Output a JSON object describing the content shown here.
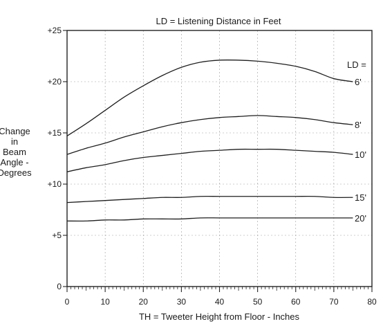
{
  "chart_data": {
    "type": "line",
    "title": "LD = Listening Distance in Feet",
    "xlabel": "TH = Tweeter Height from Floor - Inches",
    "ylabel_lines": [
      "Change",
      "in",
      "Beam",
      "Angle -",
      "Degrees"
    ],
    "xlim": [
      0,
      80
    ],
    "ylim": [
      0,
      25
    ],
    "x_ticks": [
      0,
      10,
      20,
      30,
      40,
      50,
      60,
      70,
      80
    ],
    "x_tick_labels": [
      "0",
      "10",
      "20",
      "30",
      "40",
      "50",
      "60",
      "70",
      "80"
    ],
    "y_ticks": [
      0,
      5,
      10,
      15,
      20,
      25
    ],
    "y_tick_labels": [
      "0",
      "+5",
      "+10",
      "+15",
      "+20",
      "+25"
    ],
    "grid": true,
    "legend_title": "LD =",
    "x": [
      0,
      5,
      10,
      15,
      20,
      25,
      30,
      35,
      40,
      45,
      50,
      55,
      60,
      65,
      70,
      75
    ],
    "series": [
      {
        "name": "6'",
        "values": [
          14.7,
          15.9,
          17.2,
          18.5,
          19.6,
          20.6,
          21.4,
          21.9,
          22.1,
          22.1,
          22.0,
          21.8,
          21.5,
          21.0,
          20.3,
          20.0
        ]
      },
      {
        "name": "8'",
        "values": [
          12.9,
          13.5,
          14.0,
          14.6,
          15.1,
          15.6,
          16.0,
          16.3,
          16.5,
          16.6,
          16.7,
          16.6,
          16.5,
          16.3,
          16.0,
          15.8
        ]
      },
      {
        "name": "10'",
        "values": [
          11.2,
          11.6,
          11.9,
          12.3,
          12.6,
          12.8,
          13.0,
          13.2,
          13.3,
          13.4,
          13.4,
          13.4,
          13.3,
          13.2,
          13.1,
          12.9
        ]
      },
      {
        "name": "15'",
        "values": [
          8.2,
          8.3,
          8.4,
          8.5,
          8.6,
          8.7,
          8.7,
          8.8,
          8.8,
          8.8,
          8.8,
          8.8,
          8.8,
          8.8,
          8.7,
          8.7
        ]
      },
      {
        "name": "20'",
        "values": [
          6.4,
          6.4,
          6.5,
          6.5,
          6.6,
          6.6,
          6.6,
          6.7,
          6.7,
          6.7,
          6.7,
          6.7,
          6.7,
          6.7,
          6.7,
          6.7
        ]
      }
    ]
  }
}
